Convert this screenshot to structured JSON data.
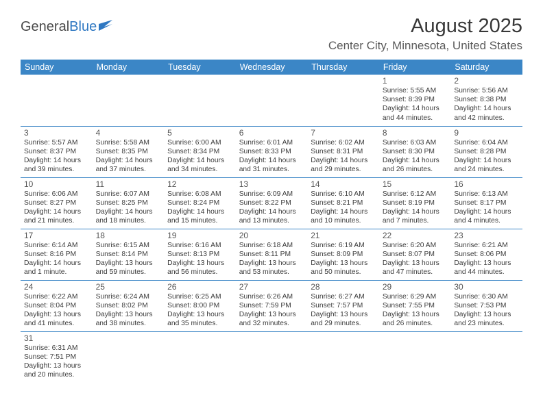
{
  "logo": {
    "part1": "General",
    "part2": "Blue"
  },
  "title": {
    "month_year": "August 2025",
    "location": "Center City, Minnesota, United States"
  },
  "colors": {
    "header_bg": "#3b86c6",
    "header_text": "#ffffff",
    "border": "#3b86c6",
    "logo_gray": "#4a4a4a",
    "logo_blue": "#2f78c2",
    "text": "#3b3b3b",
    "daynum": "#555555"
  },
  "weekdays": [
    "Sunday",
    "Monday",
    "Tuesday",
    "Wednesday",
    "Thursday",
    "Friday",
    "Saturday"
  ],
  "days": {
    "1": {
      "sunrise": "5:55 AM",
      "sunset": "8:39 PM",
      "dlh": 14,
      "dlm": 44
    },
    "2": {
      "sunrise": "5:56 AM",
      "sunset": "8:38 PM",
      "dlh": 14,
      "dlm": 42
    },
    "3": {
      "sunrise": "5:57 AM",
      "sunset": "8:37 PM",
      "dlh": 14,
      "dlm": 39
    },
    "4": {
      "sunrise": "5:58 AM",
      "sunset": "8:35 PM",
      "dlh": 14,
      "dlm": 37
    },
    "5": {
      "sunrise": "6:00 AM",
      "sunset": "8:34 PM",
      "dlh": 14,
      "dlm": 34
    },
    "6": {
      "sunrise": "6:01 AM",
      "sunset": "8:33 PM",
      "dlh": 14,
      "dlm": 31
    },
    "7": {
      "sunrise": "6:02 AM",
      "sunset": "8:31 PM",
      "dlh": 14,
      "dlm": 29
    },
    "8": {
      "sunrise": "6:03 AM",
      "sunset": "8:30 PM",
      "dlh": 14,
      "dlm": 26
    },
    "9": {
      "sunrise": "6:04 AM",
      "sunset": "8:28 PM",
      "dlh": 14,
      "dlm": 24
    },
    "10": {
      "sunrise": "6:06 AM",
      "sunset": "8:27 PM",
      "dlh": 14,
      "dlm": 21
    },
    "11": {
      "sunrise": "6:07 AM",
      "sunset": "8:25 PM",
      "dlh": 14,
      "dlm": 18
    },
    "12": {
      "sunrise": "6:08 AM",
      "sunset": "8:24 PM",
      "dlh": 14,
      "dlm": 15
    },
    "13": {
      "sunrise": "6:09 AM",
      "sunset": "8:22 PM",
      "dlh": 14,
      "dlm": 13
    },
    "14": {
      "sunrise": "6:10 AM",
      "sunset": "8:21 PM",
      "dlh": 14,
      "dlm": 10
    },
    "15": {
      "sunrise": "6:12 AM",
      "sunset": "8:19 PM",
      "dlh": 14,
      "dlm": 7
    },
    "16": {
      "sunrise": "6:13 AM",
      "sunset": "8:17 PM",
      "dlh": 14,
      "dlm": 4
    },
    "17": {
      "sunrise": "6:14 AM",
      "sunset": "8:16 PM",
      "dlh": 14,
      "dlm": 1
    },
    "18": {
      "sunrise": "6:15 AM",
      "sunset": "8:14 PM",
      "dlh": 13,
      "dlm": 59
    },
    "19": {
      "sunrise": "6:16 AM",
      "sunset": "8:13 PM",
      "dlh": 13,
      "dlm": 56
    },
    "20": {
      "sunrise": "6:18 AM",
      "sunset": "8:11 PM",
      "dlh": 13,
      "dlm": 53
    },
    "21": {
      "sunrise": "6:19 AM",
      "sunset": "8:09 PM",
      "dlh": 13,
      "dlm": 50
    },
    "22": {
      "sunrise": "6:20 AM",
      "sunset": "8:07 PM",
      "dlh": 13,
      "dlm": 47
    },
    "23": {
      "sunrise": "6:21 AM",
      "sunset": "8:06 PM",
      "dlh": 13,
      "dlm": 44
    },
    "24": {
      "sunrise": "6:22 AM",
      "sunset": "8:04 PM",
      "dlh": 13,
      "dlm": 41
    },
    "25": {
      "sunrise": "6:24 AM",
      "sunset": "8:02 PM",
      "dlh": 13,
      "dlm": 38
    },
    "26": {
      "sunrise": "6:25 AM",
      "sunset": "8:00 PM",
      "dlh": 13,
      "dlm": 35
    },
    "27": {
      "sunrise": "6:26 AM",
      "sunset": "7:59 PM",
      "dlh": 13,
      "dlm": 32
    },
    "28": {
      "sunrise": "6:27 AM",
      "sunset": "7:57 PM",
      "dlh": 13,
      "dlm": 29
    },
    "29": {
      "sunrise": "6:29 AM",
      "sunset": "7:55 PM",
      "dlh": 13,
      "dlm": 26
    },
    "30": {
      "sunrise": "6:30 AM",
      "sunset": "7:53 PM",
      "dlh": 13,
      "dlm": 23
    },
    "31": {
      "sunrise": "6:31 AM",
      "sunset": "7:51 PM",
      "dlh": 13,
      "dlm": 20
    }
  },
  "grid": [
    [
      null,
      null,
      null,
      null,
      null,
      "1",
      "2"
    ],
    [
      "3",
      "4",
      "5",
      "6",
      "7",
      "8",
      "9"
    ],
    [
      "10",
      "11",
      "12",
      "13",
      "14",
      "15",
      "16"
    ],
    [
      "17",
      "18",
      "19",
      "20",
      "21",
      "22",
      "23"
    ],
    [
      "24",
      "25",
      "26",
      "27",
      "28",
      "29",
      "30"
    ],
    [
      "31",
      null,
      null,
      null,
      null,
      null,
      null
    ]
  ],
  "labels": {
    "sunrise_prefix": "Sunrise: ",
    "sunset_prefix": "Sunset: ",
    "daylight_prefix": "Daylight: ",
    "hours_word": " hours",
    "and_word": "and ",
    "minute_singular": " minute.",
    "minute_plural": " minutes."
  }
}
